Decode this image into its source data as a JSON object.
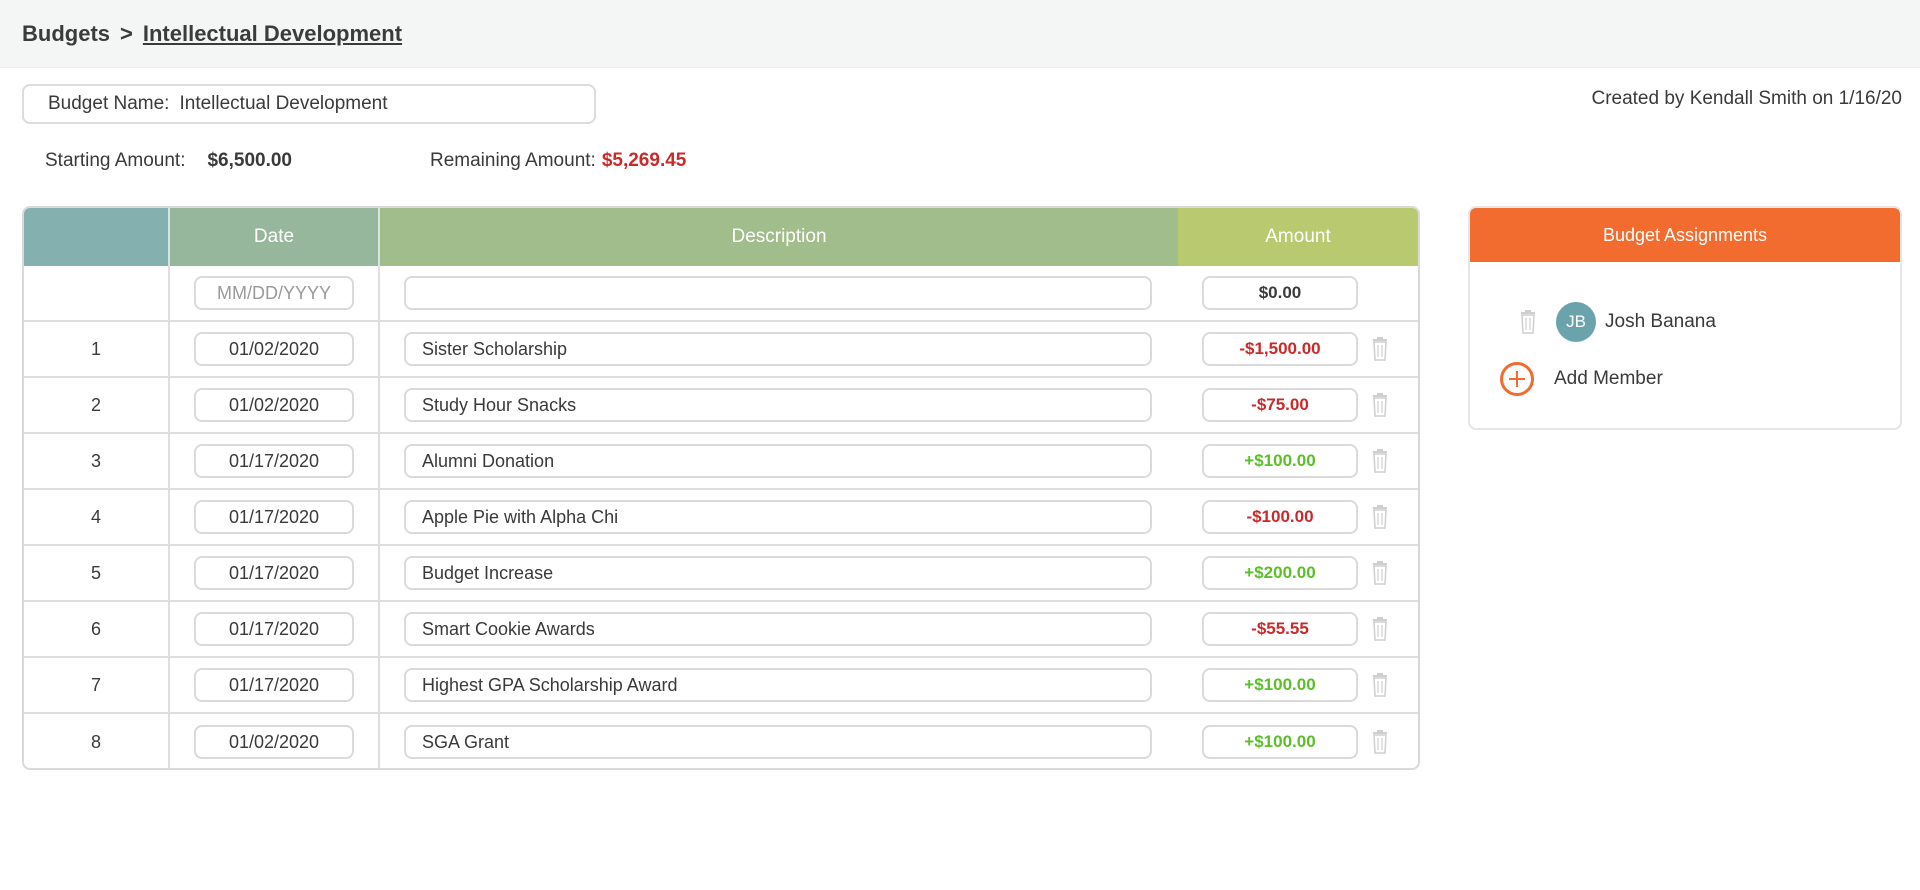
{
  "breadcrumb": {
    "root": "Budgets",
    "separator": ">",
    "current": "Intellectual Development"
  },
  "budget": {
    "name_label": "Budget Name:",
    "name_value": "Intellectual Development",
    "created": "Created by Kendall Smith on 1/16/20",
    "starting_label": "Starting Amount:",
    "starting_value": "$6,500.00",
    "remaining_label": "Remaining Amount:",
    "remaining_value": "$5,269.45"
  },
  "table": {
    "headers": {
      "date": "Date",
      "description": "Description",
      "amount": "Amount"
    },
    "new_row": {
      "date_placeholder": "MM/DD/YYYY",
      "description": "",
      "amount": "$0.00"
    },
    "rows": [
      {
        "index": "1",
        "date": "01/02/2020",
        "description": "Sister Scholarship",
        "amount": "-$1,500.00",
        "sign": "neg"
      },
      {
        "index": "2",
        "date": "01/02/2020",
        "description": "Study Hour Snacks",
        "amount": "-$75.00",
        "sign": "neg"
      },
      {
        "index": "3",
        "date": "01/17/2020",
        "description": "Alumni Donation",
        "amount": "+$100.00",
        "sign": "pos"
      },
      {
        "index": "4",
        "date": "01/17/2020",
        "description": "Apple Pie with Alpha Chi",
        "amount": "-$100.00",
        "sign": "neg"
      },
      {
        "index": "5",
        "date": "01/17/2020",
        "description": "Budget Increase",
        "amount": "+$200.00",
        "sign": "pos"
      },
      {
        "index": "6",
        "date": "01/17/2020",
        "description": "Smart Cookie Awards",
        "amount": "-$55.55",
        "sign": "neg"
      },
      {
        "index": "7",
        "date": "01/17/2020",
        "description": "Highest GPA Scholarship Award",
        "amount": "+$100.00",
        "sign": "pos"
      },
      {
        "index": "8",
        "date": "01/02/2020",
        "description": "SGA Grant",
        "amount": "+$100.00",
        "sign": "pos"
      }
    ]
  },
  "assignments": {
    "title": "Budget Assignments",
    "members": [
      {
        "initials": "JB",
        "name": "Josh Banana"
      }
    ],
    "add_label": "Add Member"
  },
  "colors": {
    "accent": "#f26c2f",
    "negative": "#c92a2a",
    "positive": "#5cbf2a",
    "avatar": "#6ba3ad"
  },
  "icons": [
    "trash-icon",
    "plus-circle-icon",
    "chevron-right-icon"
  ]
}
